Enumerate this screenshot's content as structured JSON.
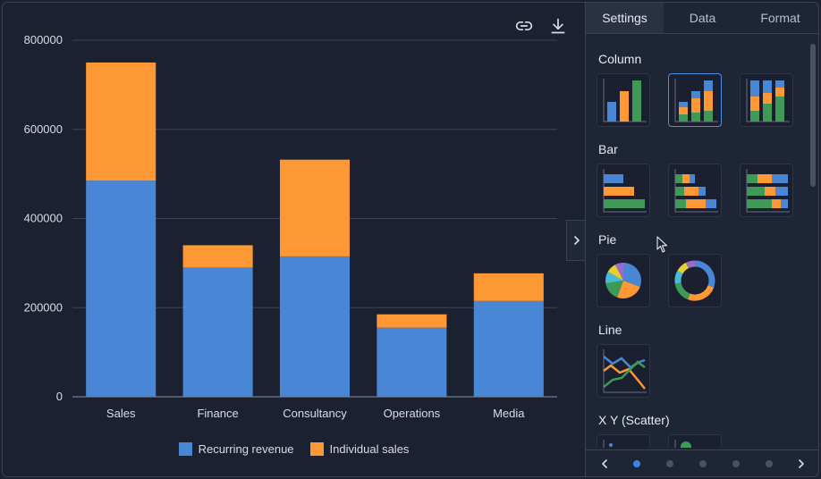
{
  "chart_data": {
    "type": "bar",
    "stacked": true,
    "categories": [
      "Sales",
      "Finance",
      "Consultancy",
      "Operations",
      "Media"
    ],
    "series": [
      {
        "name": "Recurring revenue",
        "color": "#4a86d6",
        "values": [
          485000,
          290000,
          315000,
          155000,
          215000
        ]
      },
      {
        "name": "Individual sales",
        "color": "#fd9834",
        "values": [
          265000,
          50000,
          217000,
          30000,
          62000
        ]
      }
    ],
    "ylim": [
      0,
      800000
    ],
    "yticks": [
      "800000",
      "600000",
      "400000",
      "200000",
      "0"
    ],
    "grid": true,
    "legend_position": "bottom"
  },
  "toolbar": {
    "link_icon": "link-icon",
    "download_icon": "download-icon"
  },
  "panel": {
    "tabs": [
      {
        "label": "Settings",
        "active": true
      },
      {
        "label": "Data",
        "active": false
      },
      {
        "label": "Format",
        "active": false
      }
    ],
    "sections": {
      "column": "Column",
      "bar": "Bar",
      "pie": "Pie",
      "line": "Line",
      "scatter": "X Y (Scatter)"
    },
    "pager": {
      "pages": 5,
      "current": 1
    }
  }
}
